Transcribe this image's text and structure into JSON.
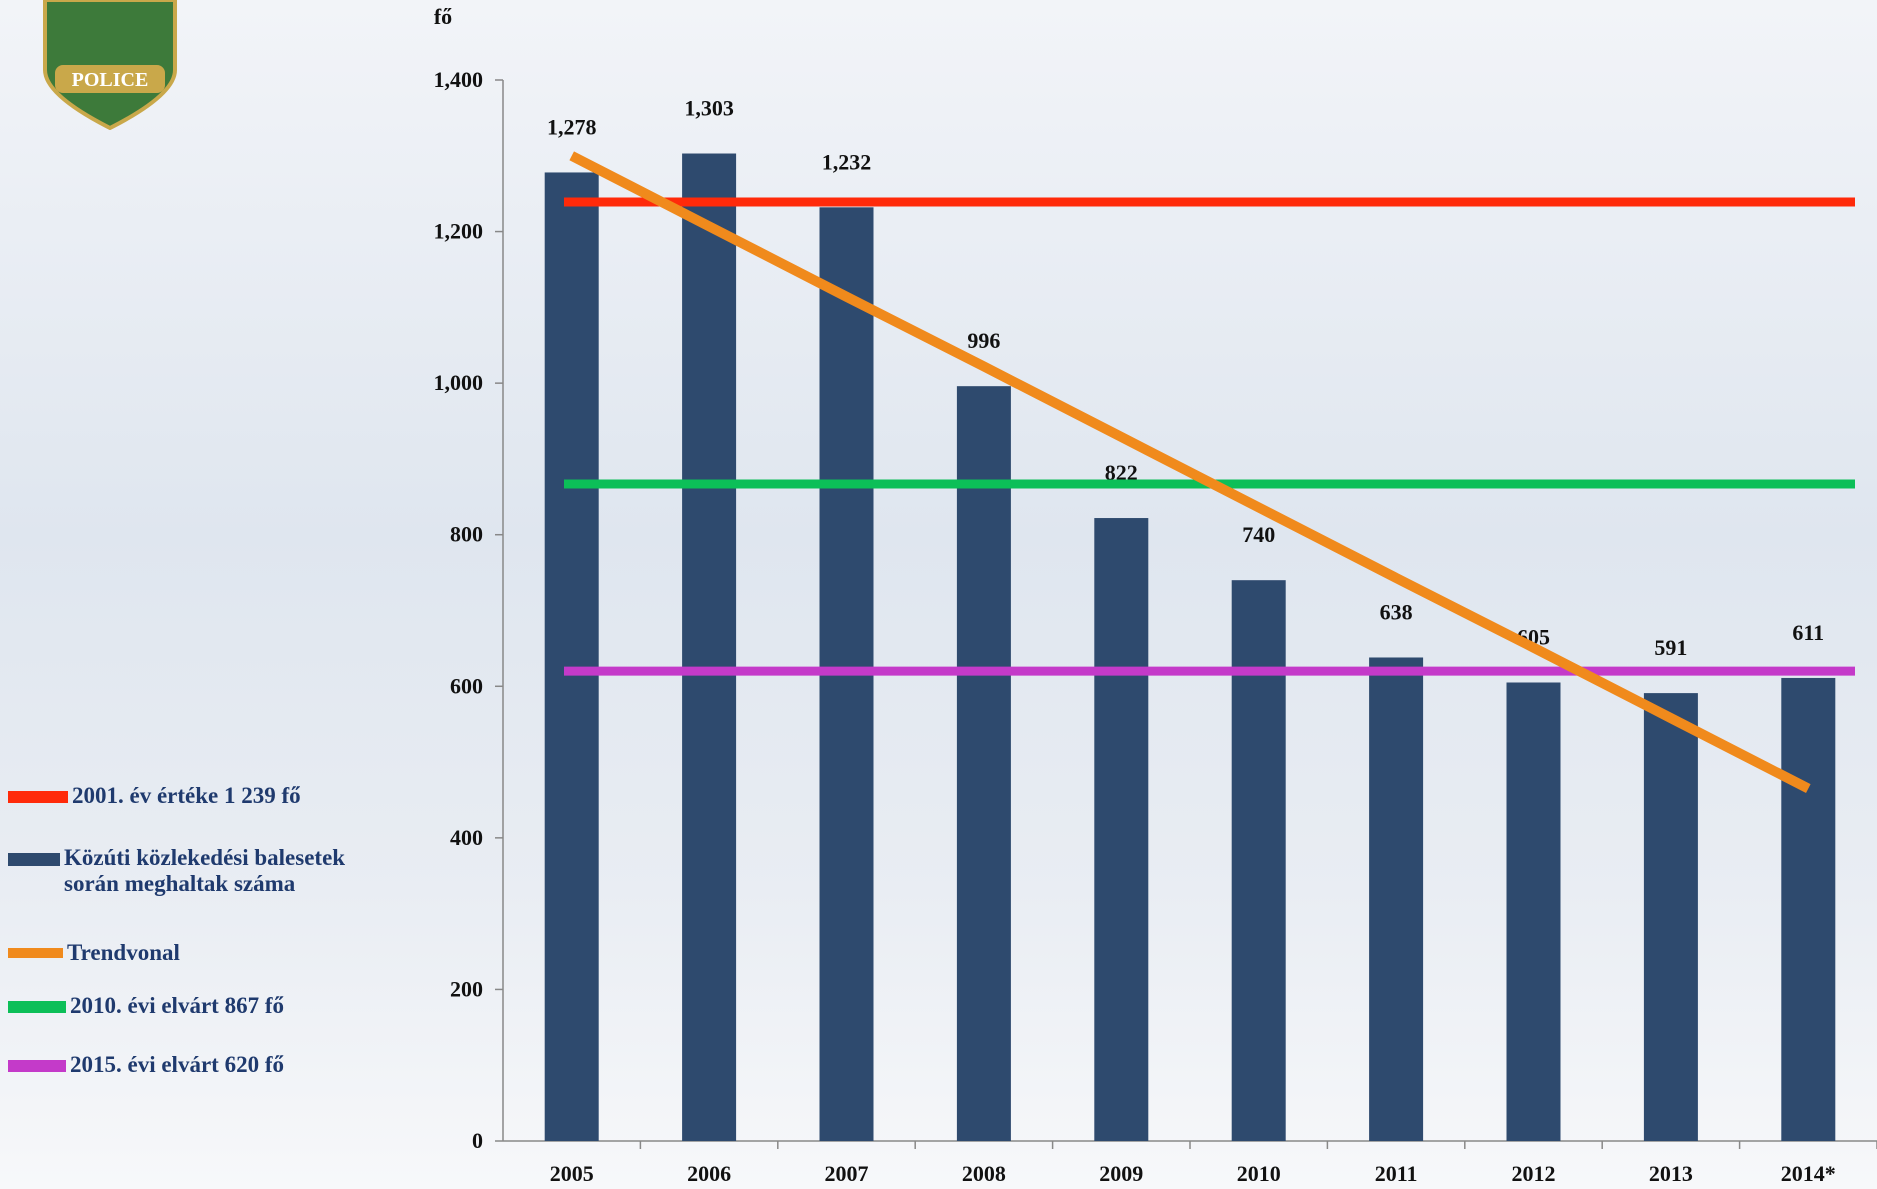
{
  "logo": {
    "text": "POLICE"
  },
  "chart_data": {
    "type": "bar",
    "unit_label": "fő",
    "categories": [
      "2005",
      "2006",
      "2007",
      "2008",
      "2009",
      "2010",
      "2011",
      "2012",
      "2013",
      "2014*"
    ],
    "series": [
      {
        "name": "Közúti közlekedési balesetek során meghaltak száma",
        "color": "#2e4a6e",
        "values": [
          1278,
          1303,
          1232,
          996,
          822,
          740,
          638,
          605,
          591,
          611
        ],
        "value_labels": [
          "1,278",
          "1,303",
          "1,232",
          "996",
          "822",
          "740",
          "638",
          "605",
          "591",
          "611"
        ]
      }
    ],
    "trend": {
      "name": "Trendvonal",
      "color": "#f08a1c",
      "values": [
        1300,
        1207,
        1114,
        1022,
        929,
        836,
        743,
        651,
        558,
        465
      ]
    },
    "reference_lines": [
      {
        "name": "2001. év értéke 1 239 fő",
        "color": "#ff2a0a",
        "value": 1239
      },
      {
        "name": "2010. évi elvárt   867 fő",
        "color": "#0cbf58",
        "value": 867
      },
      {
        "name": "2015. évi elvárt 620 fő",
        "color": "#c43ac9",
        "value": 620
      }
    ],
    "ylim": [
      0,
      1400
    ],
    "yticks": [
      0,
      200,
      400,
      600,
      800,
      {
        "value": 1000,
        "label": "1,000"
      },
      {
        "value": 1200,
        "label": "1,200"
      },
      {
        "value": 1400,
        "label": "1,400"
      }
    ]
  }
}
